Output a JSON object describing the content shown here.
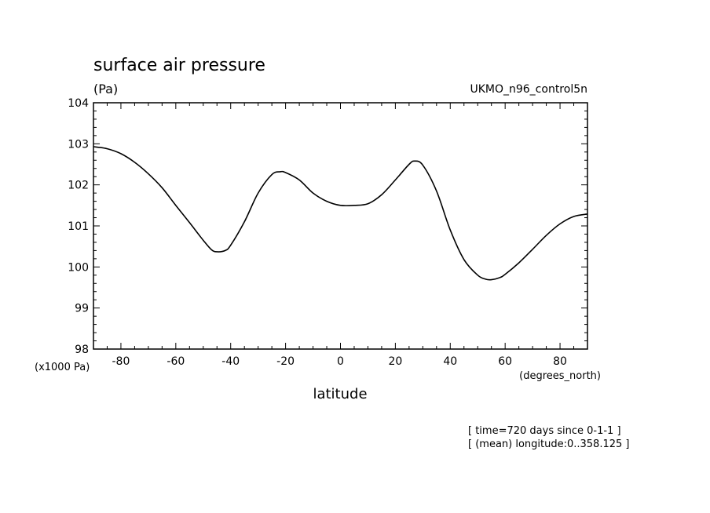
{
  "chart_data": {
    "type": "line",
    "title": "surface air pressure",
    "units_label": "(Pa)",
    "dataset_label": "UKMO_n96_control5n",
    "ylabel_scale": "(x1000 Pa)",
    "xlabel": "latitude",
    "xunits": "(degrees_north)",
    "notes": [
      "[ time=720 days since 0-1-1 ]",
      "[ (mean) longitude:0..358.125 ]"
    ],
    "xlim": [
      -90,
      90
    ],
    "ylim": [
      98,
      104
    ],
    "x_ticks": [
      -80,
      -60,
      -40,
      -20,
      0,
      20,
      40,
      60,
      80
    ],
    "x_tick_labels": [
      "-80",
      "-60",
      "-40",
      "-20",
      "0",
      "20",
      "40",
      "60",
      "80"
    ],
    "y_ticks": [
      98,
      99,
      100,
      101,
      102,
      103,
      104
    ],
    "y_tick_labels": [
      "98",
      "99",
      "100",
      "101",
      "102",
      "103",
      "104"
    ],
    "series": [
      {
        "x": [
          -90,
          -85,
          -80,
          -75,
          -70,
          -65,
          -60,
          -55,
          -50,
          -47,
          -45,
          -42,
          -40,
          -35,
          -30,
          -25,
          -22,
          -20,
          -15,
          -10,
          -5,
          0,
          5,
          10,
          15,
          20,
          25,
          27,
          30,
          35,
          40,
          45,
          50,
          53,
          55,
          58,
          60,
          65,
          70,
          75,
          80,
          85,
          90
        ],
        "values": [
          102.93,
          102.88,
          102.76,
          102.55,
          102.27,
          101.93,
          101.5,
          101.08,
          100.65,
          100.42,
          100.37,
          100.4,
          100.53,
          101.1,
          101.8,
          102.25,
          102.32,
          102.3,
          102.12,
          101.8,
          101.6,
          101.5,
          101.5,
          101.54,
          101.76,
          102.12,
          102.5,
          102.58,
          102.48,
          101.85,
          100.9,
          100.18,
          99.8,
          99.7,
          99.69,
          99.74,
          99.82,
          100.1,
          100.43,
          100.77,
          101.05,
          101.23,
          101.29
        ]
      }
    ]
  },
  "colors": {
    "line": "#000000",
    "axes": "#000000",
    "background": "#ffffff"
  }
}
